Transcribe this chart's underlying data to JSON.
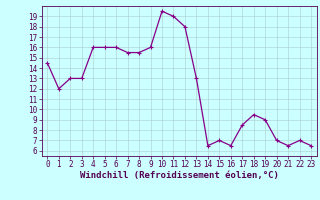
{
  "x": [
    0,
    1,
    2,
    3,
    4,
    5,
    6,
    7,
    8,
    9,
    10,
    11,
    12,
    13,
    14,
    15,
    16,
    17,
    18,
    19,
    20,
    21,
    22,
    23
  ],
  "y": [
    14.5,
    12.0,
    13.0,
    13.0,
    16.0,
    16.0,
    16.0,
    15.5,
    15.5,
    16.0,
    19.5,
    19.0,
    18.0,
    13.0,
    6.5,
    7.0,
    6.5,
    8.5,
    9.5,
    9.0,
    7.0,
    6.5,
    7.0,
    6.5
  ],
  "xlim": [
    -0.5,
    23.5
  ],
  "ylim": [
    5.5,
    20.0
  ],
  "yticks": [
    6,
    7,
    8,
    9,
    10,
    11,
    12,
    13,
    14,
    15,
    16,
    17,
    18,
    19
  ],
  "xticks": [
    0,
    1,
    2,
    3,
    4,
    5,
    6,
    7,
    8,
    9,
    10,
    11,
    12,
    13,
    14,
    15,
    16,
    17,
    18,
    19,
    20,
    21,
    22,
    23
  ],
  "xlabel": "Windchill (Refroidissement éolien,°C)",
  "line_color": "#880088",
  "marker": "P",
  "marker_size": 2.0,
  "bg_color": "#ccffff",
  "grid_color": "#aacccc",
  "tick_fontsize": 5.5,
  "xlabel_fontsize": 6.5
}
